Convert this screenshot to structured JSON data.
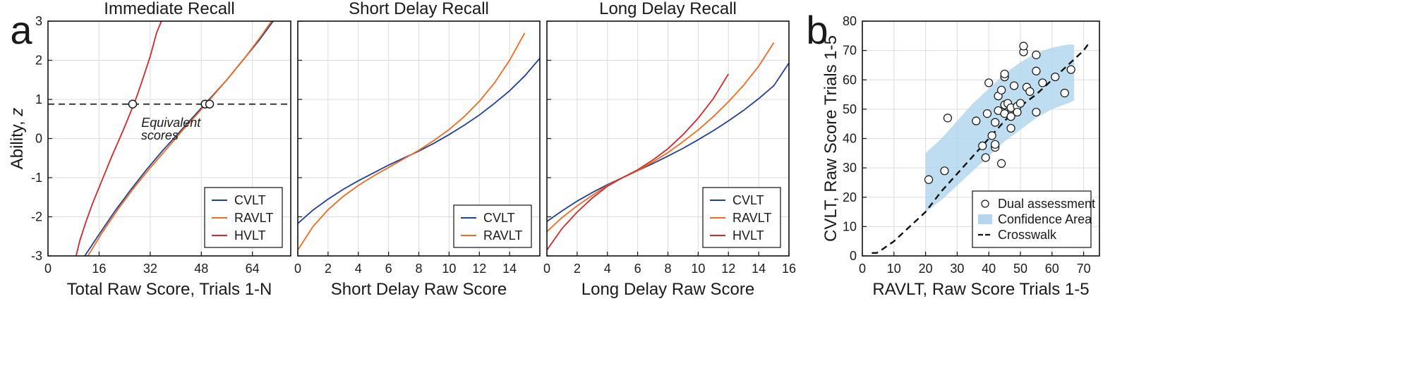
{
  "panel_a_label": "a",
  "panel_b_label": "b",
  "chart_data": [
    {
      "type": "line",
      "title": "Immediate Recall",
      "xlabel": "Total Raw Score, Trials 1-N",
      "ylabel": "Ability, z",
      "xlim": [
        0,
        76
      ],
      "ylim": [
        -3,
        3
      ],
      "xticks": [
        0,
        16,
        32,
        48,
        64
      ],
      "yticks": [
        -3,
        -2,
        -1,
        0,
        1,
        2,
        3
      ],
      "grid": true,
      "legend": [
        "CVLT",
        "RAVLT",
        "HVLT"
      ],
      "legend_position": "bottom-right",
      "reference_line_y": 0.88,
      "annotation": "Equivalent scores",
      "equivalent_points": [
        [
          26.5,
          0.88
        ],
        [
          49.2,
          0.88
        ],
        [
          50.6,
          0.88
        ]
      ],
      "series": [
        {
          "name": "CVLT",
          "color": "#1f3f99",
          "x": [
            11.5,
            16,
            21,
            26,
            31,
            36,
            41,
            46,
            51,
            56,
            61,
            66,
            70.5
          ],
          "y": [
            -3.0,
            -2.45,
            -1.85,
            -1.3,
            -0.78,
            -0.3,
            0.15,
            0.6,
            1.05,
            1.5,
            2.0,
            2.5,
            3.0
          ]
        },
        {
          "name": "RAVLT",
          "color": "#f26a1b",
          "x": [
            12.5,
            17,
            22,
            27,
            32,
            37,
            42,
            47,
            52,
            57,
            62,
            67,
            70.0
          ],
          "y": [
            -3.0,
            -2.4,
            -1.8,
            -1.25,
            -0.75,
            -0.28,
            0.2,
            0.65,
            1.12,
            1.6,
            2.1,
            2.65,
            3.0
          ]
        },
        {
          "name": "HVLT",
          "color": "#d62728",
          "x": [
            8.8,
            10,
            12,
            14,
            16,
            18,
            20,
            22,
            24,
            26,
            28,
            30,
            32,
            34,
            35.5
          ],
          "y": [
            -3.0,
            -2.6,
            -2.1,
            -1.65,
            -1.25,
            -0.85,
            -0.45,
            -0.08,
            0.3,
            0.7,
            1.12,
            1.6,
            2.1,
            2.7,
            3.0
          ]
        }
      ]
    },
    {
      "type": "line",
      "title": "Short Delay Recall",
      "xlabel": "Short Delay Raw Score",
      "ylabel": "",
      "xlim": [
        0,
        16
      ],
      "ylim": [
        -3,
        3
      ],
      "xticks": [
        0,
        2,
        4,
        6,
        8,
        10,
        12,
        14
      ],
      "yticks": [
        -3,
        -2,
        -1,
        0,
        1,
        2,
        3
      ],
      "grid": true,
      "legend": [
        "CVLT",
        "RAVLT"
      ],
      "legend_position": "bottom-right",
      "series": [
        {
          "name": "CVLT",
          "color": "#1f3f99",
          "x": [
            0,
            1,
            2,
            3,
            4,
            5,
            6,
            7,
            8,
            9,
            10,
            11,
            12,
            13,
            14,
            15,
            16
          ],
          "y": [
            -2.17,
            -1.83,
            -1.55,
            -1.3,
            -1.08,
            -0.88,
            -0.68,
            -0.5,
            -0.32,
            -0.12,
            0.1,
            0.34,
            0.6,
            0.9,
            1.22,
            1.6,
            2.05
          ]
        },
        {
          "name": "RAVLT",
          "color": "#f26a1b",
          "x": [
            0,
            1,
            2,
            3,
            4,
            5,
            6,
            7,
            8,
            9,
            10,
            11,
            12,
            13,
            14,
            15
          ],
          "y": [
            -2.85,
            -2.25,
            -1.82,
            -1.48,
            -1.2,
            -0.96,
            -0.74,
            -0.52,
            -0.3,
            -0.05,
            0.23,
            0.56,
            0.95,
            1.42,
            2.0,
            2.7
          ]
        }
      ]
    },
    {
      "type": "line",
      "title": "Long Delay Recall",
      "xlabel": "Long Delay Raw Score",
      "ylabel": "",
      "xlim": [
        0,
        16
      ],
      "ylim": [
        -3,
        3
      ],
      "xticks": [
        0,
        2,
        4,
        6,
        8,
        10,
        12,
        14,
        16
      ],
      "yticks": [
        -3,
        -2,
        -1,
        0,
        1,
        2,
        3
      ],
      "grid": true,
      "legend": [
        "CVLT",
        "RAVLT",
        "HVLT"
      ],
      "legend_position": "bottom-right",
      "series": [
        {
          "name": "CVLT",
          "color": "#1f3f99",
          "x": [
            0,
            1,
            2,
            3,
            4,
            5,
            6,
            7,
            8,
            9,
            10,
            11,
            12,
            13,
            14,
            15,
            16
          ],
          "y": [
            -2.12,
            -1.85,
            -1.6,
            -1.38,
            -1.18,
            -1.0,
            -0.82,
            -0.64,
            -0.45,
            -0.25,
            -0.03,
            0.2,
            0.45,
            0.72,
            1.02,
            1.35,
            1.93
          ]
        },
        {
          "name": "RAVLT",
          "color": "#f26a1b",
          "x": [
            0,
            1,
            2,
            3,
            4,
            5,
            6,
            7,
            8,
            9,
            10,
            11,
            12,
            13,
            14,
            15
          ],
          "y": [
            -2.38,
            -2.02,
            -1.72,
            -1.45,
            -1.2,
            -1.0,
            -0.82,
            -0.6,
            -0.36,
            -0.08,
            0.22,
            0.56,
            0.94,
            1.36,
            1.85,
            2.45
          ]
        },
        {
          "name": "HVLT",
          "color": "#d62728",
          "x": [
            0,
            1,
            2,
            3,
            4,
            5,
            6,
            7,
            8,
            9,
            10,
            11,
            12
          ],
          "y": [
            -2.85,
            -2.3,
            -1.88,
            -1.52,
            -1.22,
            -1.0,
            -0.8,
            -0.55,
            -0.26,
            0.1,
            0.52,
            1.02,
            1.65
          ]
        }
      ]
    },
    {
      "type": "scatter",
      "title": "",
      "xlabel": "RAVLT, Raw Score Trials 1-5",
      "ylabel": "CVLT, Raw Score Trials 1-5",
      "xlim": [
        0,
        75
      ],
      "ylim": [
        0,
        80
      ],
      "xticks": [
        0,
        10,
        20,
        30,
        40,
        50,
        60,
        70
      ],
      "yticks": [
        0,
        10,
        20,
        30,
        40,
        50,
        60,
        70,
        80
      ],
      "grid": true,
      "legend": [
        "Dual assessment",
        "Confidence Area",
        "Crosswalk"
      ],
      "legend_position": "bottom-right",
      "confidence_area": {
        "x": [
          20,
          25,
          30,
          35,
          40,
          45,
          50,
          55,
          60,
          65,
          67
        ],
        "upper": [
          35,
          40,
          46,
          52,
          57,
          62,
          66,
          69,
          71,
          72,
          72
        ],
        "lower": [
          15,
          19,
          24,
          29,
          34,
          39,
          43,
          47,
          50,
          52,
          53
        ]
      },
      "crosswalk": {
        "x": [
          3,
          4.5,
          6,
          8,
          10,
          12,
          14,
          16,
          18,
          20,
          25,
          30,
          35,
          40,
          45,
          50,
          55,
          60,
          65,
          70,
          72
        ],
        "y": [
          1,
          1,
          2,
          3.5,
          5,
          7,
          9,
          11,
          13,
          15,
          22,
          28,
          34,
          40,
          46,
          51,
          55,
          60,
          65,
          70,
          73
        ]
      },
      "points": [
        [
          21,
          26
        ],
        [
          26,
          29
        ],
        [
          27,
          47
        ],
        [
          36,
          46
        ],
        [
          38,
          37.5
        ],
        [
          39,
          33.5
        ],
        [
          39.5,
          48.5
        ],
        [
          40,
          59
        ],
        [
          41,
          41
        ],
        [
          42,
          37
        ],
        [
          42,
          38
        ],
        [
          42,
          45.5
        ],
        [
          43,
          49.5
        ],
        [
          43,
          54.5
        ],
        [
          44,
          56.5
        ],
        [
          44,
          31.5
        ],
        [
          45,
          61
        ],
        [
          45,
          62
        ],
        [
          45,
          48.5
        ],
        [
          45,
          51.5
        ],
        [
          46,
          52
        ],
        [
          47,
          47.5
        ],
        [
          47,
          43.5
        ],
        [
          47,
          50.5
        ],
        [
          48,
          58
        ],
        [
          49,
          51
        ],
        [
          49,
          49
        ],
        [
          50,
          52
        ],
        [
          51,
          69.5
        ],
        [
          51,
          71.5
        ],
        [
          52,
          57.5
        ],
        [
          53,
          56
        ],
        [
          55,
          49
        ],
        [
          55,
          63
        ],
        [
          55,
          68.5
        ],
        [
          57,
          59
        ],
        [
          61,
          61
        ],
        [
          64,
          55.5
        ],
        [
          66,
          63.5
        ]
      ]
    }
  ]
}
